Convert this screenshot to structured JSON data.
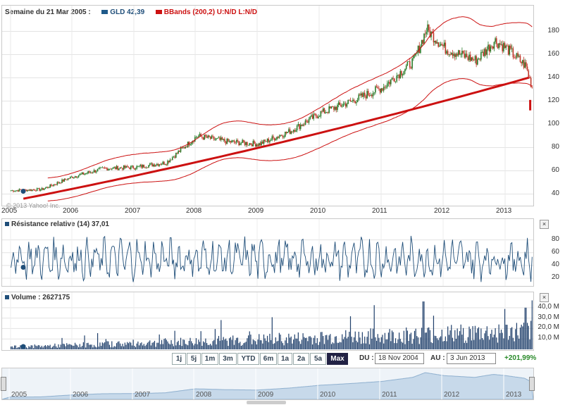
{
  "main_chart": {
    "header_week": "Semaine du 21 Mar 2005 :",
    "series1_label": "GLD 42,39",
    "series2_label": "BBands (200,2) U:N/D L:N/D",
    "copyright": "© 2013 Yahoo! Inc.",
    "y_ticks": [
      "180",
      "160",
      "140",
      "120",
      "100",
      "80",
      "60",
      "40"
    ],
    "x_ticks": [
      "2005",
      "2006",
      "2007",
      "2008",
      "2009",
      "2010",
      "2011",
      "2012",
      "2013"
    ]
  },
  "rsi_panel": {
    "title": "Résistance relative (14) 37,01",
    "y_ticks": [
      "80",
      "60",
      "40",
      "20"
    ],
    "close_label": "×"
  },
  "volume_panel": {
    "title": "Volume : 2627175",
    "y_ticks": [
      "40,0 M",
      "30,0 M",
      "20,0 M",
      "10,0 M"
    ],
    "close_label": "×"
  },
  "range_bar": {
    "buttons": [
      "1j",
      "5j",
      "1m",
      "3m",
      "YTD",
      "6m",
      "1a",
      "2a",
      "5a",
      "Max"
    ],
    "active": "Max",
    "from_label": "DU :",
    "from_value": "18 Nov 2004",
    "to_label": "AU :",
    "to_value": "3 Jun 2013",
    "change": "+201,99%"
  },
  "navigator": {
    "x_ticks": [
      "2005",
      "2006",
      "2007",
      "2008",
      "2009",
      "2010",
      "2011",
      "2012",
      "2013"
    ]
  },
  "colors": {
    "price": "#2a7d2a",
    "down": "#c0392b",
    "bbands": "#cc1111",
    "rsi": "#1f4e79",
    "volume": "#1f3f6b",
    "nav_fill": "#c7d9ea"
  },
  "chart_data": [
    {
      "type": "line",
      "title": "GLD",
      "x": [
        "2005",
        "2005.5",
        "2006",
        "2006.5",
        "2007",
        "2007.5",
        "2008",
        "2008.5",
        "2009",
        "2009.5",
        "2010",
        "2010.5",
        "2011",
        "2011.5",
        "2011.7",
        "2012",
        "2012.5",
        "2012.8",
        "2013",
        "2013.3",
        "2013.4"
      ],
      "series": [
        {
          "name": "GLD 42,39",
          "values": [
            43,
            44,
            55,
            62,
            63,
            67,
            90,
            85,
            83,
            94,
            110,
            120,
            132,
            155,
            182,
            165,
            155,
            172,
            165,
            150,
            132
          ]
        },
        {
          "name": "BBands (200,2) U:N/D L:N/D",
          "values": [
            null,
            null,
            null,
            null,
            null,
            null,
            null,
            null,
            null,
            null,
            null,
            null,
            null,
            null,
            null,
            null,
            null,
            null,
            null,
            null,
            null
          ]
        }
      ],
      "ylim": [
        30,
        190
      ]
    },
    {
      "type": "line",
      "title": "Résistance relative (14) 37,01",
      "ylim": [
        10,
        95
      ]
    },
    {
      "type": "bar",
      "title": "Volume : 2627175",
      "ylim": [
        0,
        45
      ]
    }
  ]
}
